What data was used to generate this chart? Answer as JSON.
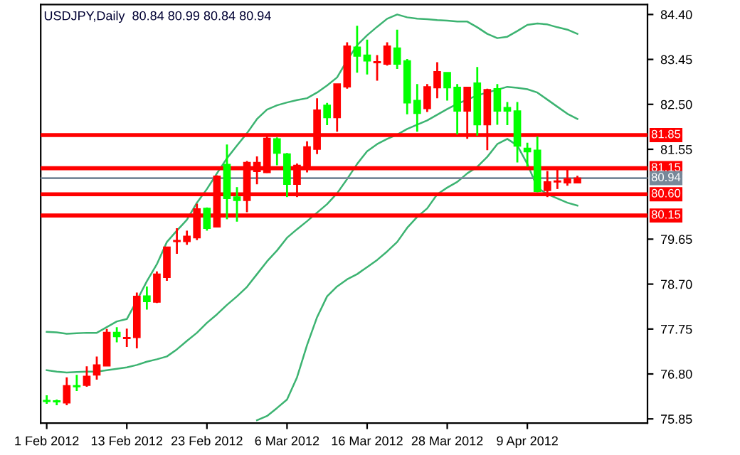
{
  "chart_data": {
    "type": "candlestick",
    "title": "USDJPY,Daily  80.84 80.99 80.84 80.94",
    "categories": [
      "1 Feb 2012",
      null,
      null,
      null,
      null,
      null,
      null,
      null,
      "13 Feb 2012",
      null,
      null,
      null,
      null,
      null,
      null,
      null,
      "23 Feb 2012",
      null,
      null,
      null,
      null,
      null,
      null,
      null,
      "6 Mar 2012",
      null,
      null,
      null,
      null,
      null,
      null,
      null,
      "16 Mar 2012",
      null,
      null,
      null,
      null,
      null,
      null,
      null,
      "28 Mar 2012",
      null,
      null,
      null,
      null,
      null,
      null,
      null,
      "9 Apr 2012",
      null,
      null,
      null,
      null,
      null
    ],
    "ohlc": [
      [
        76.24,
        76.35,
        76.17,
        76.22
      ],
      [
        76.23,
        76.26,
        76.14,
        76.21
      ],
      [
        76.19,
        76.73,
        76.14,
        76.55
      ],
      [
        76.55,
        76.78,
        76.44,
        76.53
      ],
      [
        76.56,
        76.96,
        76.53,
        76.75
      ],
      [
        76.78,
        77.17,
        76.68,
        76.99
      ],
      [
        76.97,
        77.75,
        76.97,
        77.68
      ],
      [
        77.68,
        77.79,
        77.47,
        77.59
      ],
      [
        77.55,
        77.76,
        77.37,
        77.57
      ],
      [
        77.57,
        78.52,
        77.34,
        78.44
      ],
      [
        78.45,
        78.65,
        78.16,
        78.33
      ],
      [
        78.32,
        78.97,
        78.3,
        78.91
      ],
      [
        78.84,
        79.48,
        78.77,
        79.48
      ],
      [
        79.6,
        79.88,
        79.34,
        79.62
      ],
      [
        79.6,
        79.83,
        79.53,
        79.71
      ],
      [
        79.68,
        80.4,
        79.63,
        80.29
      ],
      [
        80.3,
        80.32,
        79.83,
        79.88
      ],
      [
        79.91,
        81.0,
        79.91,
        80.98
      ],
      [
        81.23,
        81.65,
        80.07,
        80.51
      ],
      [
        80.54,
        80.75,
        80.02,
        80.47
      ],
      [
        80.47,
        81.3,
        80.22,
        81.27
      ],
      [
        81.08,
        81.4,
        80.81,
        81.27
      ],
      [
        81.06,
        81.83,
        81.05,
        81.78
      ],
      [
        81.77,
        81.8,
        81.21,
        81.47
      ],
      [
        81.45,
        81.47,
        80.54,
        80.81
      ],
      [
        80.81,
        81.25,
        80.54,
        81.21
      ],
      [
        81.18,
        81.72,
        81.06,
        81.6
      ],
      [
        81.55,
        82.63,
        81.45,
        82.38
      ],
      [
        82.48,
        82.53,
        82.06,
        82.22
      ],
      [
        82.22,
        82.93,
        81.92,
        82.93
      ],
      [
        82.87,
        83.81,
        82.83,
        83.73
      ],
      [
        83.71,
        84.16,
        83.17,
        83.52
      ],
      [
        83.54,
        83.87,
        83.13,
        83.42
      ],
      [
        83.38,
        83.54,
        83.0,
        83.4
      ],
      [
        83.35,
        83.81,
        83.32,
        83.73
      ],
      [
        83.69,
        84.08,
        83.25,
        83.35
      ],
      [
        83.42,
        83.46,
        82.29,
        82.53
      ],
      [
        82.58,
        82.93,
        81.92,
        82.31
      ],
      [
        82.41,
        82.93,
        82.34,
        82.87
      ],
      [
        82.85,
        83.39,
        82.63,
        83.19
      ],
      [
        83.17,
        83.17,
        82.58,
        82.85
      ],
      [
        82.86,
        82.93,
        81.86,
        82.36
      ],
      [
        82.36,
        82.87,
        81.77,
        82.86
      ],
      [
        82.95,
        83.29,
        81.84,
        82.07
      ],
      [
        82.07,
        82.83,
        81.53,
        82.81
      ],
      [
        82.83,
        82.93,
        82.07,
        82.36
      ],
      [
        82.43,
        82.55,
        82.06,
        82.36
      ],
      [
        82.36,
        82.55,
        81.27,
        81.62
      ],
      [
        81.57,
        81.69,
        81.18,
        81.5
      ],
      [
        81.53,
        81.82,
        80.64,
        80.66
      ],
      [
        80.68,
        81.09,
        80.54,
        80.86
      ],
      [
        80.86,
        81.13,
        80.71,
        80.88
      ],
      [
        80.84,
        81.13,
        80.78,
        80.93
      ],
      [
        80.84,
        80.99,
        80.84,
        80.94
      ]
    ],
    "colors": [
      "#00ff00",
      "#00ff00",
      "#ff0000",
      "#00ff00",
      "#ff0000",
      "#ff0000",
      "#ff0000",
      "#00ff00",
      "#ff0000",
      "#ff0000",
      "#00ff00",
      "#ff0000",
      "#ff0000",
      "#ff0000",
      "#ff0000",
      "#ff0000",
      "#00ff00",
      "#ff0000",
      "#00ff00",
      "#00ff00",
      "#ff0000",
      "#ff0000",
      "#ff0000",
      "#00ff00",
      "#00ff00",
      "#ff0000",
      "#ff0000",
      "#ff0000",
      "#00ff00",
      "#ff0000",
      "#ff0000",
      "#00ff00",
      "#00ff00",
      "#ff0000",
      "#ff0000",
      "#00ff00",
      "#00ff00",
      "#00ff00",
      "#ff0000",
      "#ff0000",
      "#00ff00",
      "#00ff00",
      "#ff0000",
      "#00ff00",
      "#ff0000",
      "#00ff00",
      "#00ff00",
      "#00ff00",
      "#00ff00",
      "#00ff00",
      "#ff0000",
      "#ff0000",
      "#ff0000",
      "#ff0000"
    ],
    "series": [
      {
        "type": "line",
        "color": "#3cb371",
        "values": [
          77.69,
          77.68,
          77.65,
          77.66,
          77.67,
          77.67,
          77.79,
          77.91,
          77.96,
          78.35,
          78.76,
          79.12,
          79.59,
          79.83,
          80.06,
          80.42,
          80.71,
          81.04,
          81.36,
          81.63,
          81.89,
          82.19,
          82.39,
          82.48,
          82.54,
          82.59,
          82.63,
          82.75,
          82.9,
          83.07,
          83.43,
          83.75,
          83.96,
          84.14,
          84.31,
          84.4,
          84.34,
          84.31,
          84.3,
          84.28,
          84.27,
          84.25,
          84.25,
          84.13,
          83.99,
          83.9,
          83.93,
          84.05,
          84.18,
          84.21,
          84.19,
          84.13,
          84.08,
          83.99
        ]
      },
      {
        "type": "line",
        "color": "#3cb371",
        "values": [
          76.88,
          76.85,
          76.83,
          76.84,
          76.85,
          76.85,
          76.88,
          76.91,
          76.94,
          76.99,
          77.06,
          77.11,
          77.17,
          77.32,
          77.5,
          77.67,
          77.88,
          78.06,
          78.26,
          78.44,
          78.64,
          78.91,
          79.18,
          79.41,
          79.68,
          79.86,
          80.03,
          80.21,
          80.39,
          80.62,
          80.92,
          81.24,
          81.51,
          81.66,
          81.77,
          81.86,
          81.98,
          82.07,
          82.16,
          82.28,
          82.4,
          82.51,
          82.6,
          82.69,
          82.75,
          82.81,
          82.87,
          82.85,
          82.82,
          82.75,
          82.6,
          82.45,
          82.3,
          82.19
        ]
      },
      {
        "type": "line",
        "color": "#3cb371",
        "values": [
          null,
          null,
          null,
          null,
          null,
          null,
          null,
          null,
          null,
          null,
          null,
          null,
          null,
          null,
          null,
          null,
          null,
          null,
          null,
          null,
          null,
          75.82,
          75.91,
          76.08,
          76.26,
          76.73,
          77.41,
          78.0,
          78.44,
          78.65,
          78.8,
          78.91,
          79.06,
          79.21,
          79.39,
          79.59,
          79.89,
          80.12,
          80.3,
          80.6,
          80.74,
          80.86,
          81.04,
          81.18,
          81.39,
          81.66,
          81.77,
          81.63,
          81.24,
          80.74,
          80.6,
          80.51,
          80.42,
          80.36
        ]
      }
    ],
    "ref_lines": [
      {
        "axis": "y",
        "value": 81.85,
        "label": "81.85",
        "color": "#ff0000"
      },
      {
        "axis": "y",
        "value": 81.15,
        "label": "81.15",
        "color": "#ff0000"
      },
      {
        "axis": "y",
        "value": 80.94,
        "label": "80.94",
        "color": "#778899"
      },
      {
        "axis": "y",
        "value": 80.6,
        "label": "80.60",
        "color": "#ff0000"
      },
      {
        "axis": "y",
        "value": 80.15,
        "label": "80.15",
        "color": "#ff0000"
      }
    ],
    "ylim": [
      75.76,
      84.61
    ],
    "yticks": [
      {
        "value": 84.4,
        "label": "84.40"
      },
      {
        "value": 83.45,
        "label": "83.45"
      },
      {
        "value": 82.5,
        "label": "82.50"
      },
      {
        "value": 81.55,
        "label": "81.55"
      },
      {
        "value": 79.65,
        "label": "79.65"
      },
      {
        "value": 78.7,
        "label": "78.70"
      },
      {
        "value": 77.75,
        "label": "77.75"
      },
      {
        "value": 76.8,
        "label": "76.80"
      },
      {
        "value": 75.85,
        "label": "75.85"
      }
    ],
    "grid": false,
    "legend": false
  }
}
